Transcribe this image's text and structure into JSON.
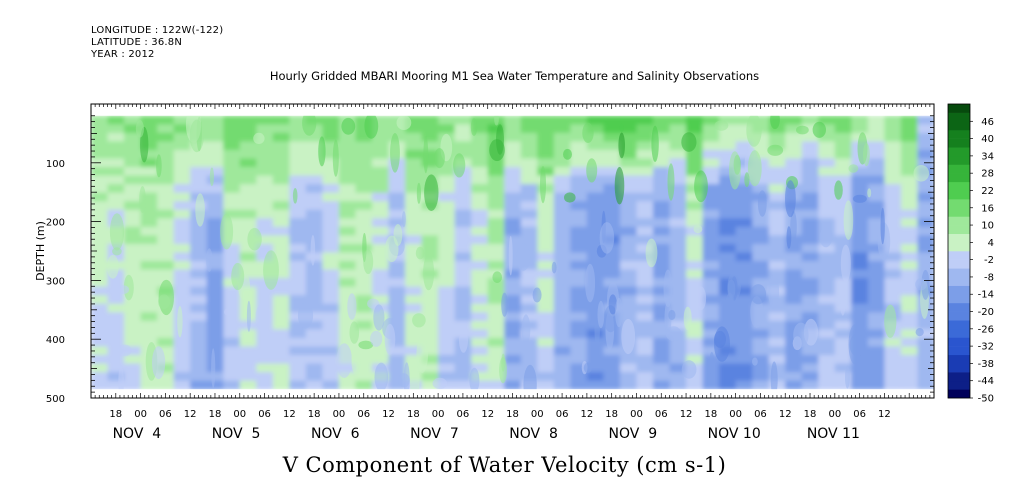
{
  "header": {
    "longitude": "LONGITUDE : 122W(-122)",
    "latitude": "LATITUDE : 36.8N",
    "year": "YEAR : 2012"
  },
  "title": "Hourly Gridded MBARI Mooring M1 Sea Water Temperature and Salinity Observations",
  "chart_data": {
    "type": "heatmap",
    "title": "Hourly Gridded MBARI Mooring M1 Sea Water Temperature and Salinity Observations",
    "xlabel": "V Component of Water Velocity (cm s-1)",
    "ylabel": "DEPTH (m)",
    "ylim": [
      500,
      0
    ],
    "yticks": [
      100,
      200,
      300,
      400,
      500
    ],
    "x_hour_ticks": [
      "18",
      "00",
      "06",
      "12",
      "18",
      "00",
      "06",
      "12",
      "18",
      "00",
      "06",
      "12",
      "18",
      "00",
      "06",
      "12",
      "18",
      "00",
      "06",
      "12",
      "18",
      "00",
      "06",
      "12",
      "18",
      "00",
      "06",
      "12",
      "18",
      "00",
      "06",
      "12"
    ],
    "x_day_labels": [
      "NOV  4",
      "NOV  5",
      "NOV  6",
      "NOV  7",
      "NOV  8",
      "NOV  9",
      "NOV 10",
      "NOV 11"
    ],
    "x_range_hours": [
      -12,
      192
    ],
    "data_depth_range": [
      20,
      485
    ],
    "colorbar": {
      "labels": [
        "46",
        "40",
        "34",
        "28",
        "22",
        "16",
        "10",
        "4",
        "-2",
        "-8",
        "-14",
        "-20",
        "-26",
        "-32",
        "-38",
        "-44",
        "-50"
      ],
      "range": [
        -50,
        52
      ],
      "step": 3,
      "colors_negative": [
        "#00005a",
        "#0d1f87",
        "#1a3cb4",
        "#2a55cf",
        "#3b6ad8",
        "#5a83e0",
        "#7c9ee8",
        "#9fb8f0",
        "#bfcef7"
      ],
      "colors_positive": [
        "#c9f2c4",
        "#9fe89b",
        "#73db70",
        "#4fcd50",
        "#36b43a",
        "#239a2a",
        "#15801e",
        "#0c6515",
        "#064a0d"
      ]
    },
    "columns": [
      {
        "hour": -10,
        "upper": 12,
        "mid": 4,
        "deep": -4
      },
      {
        "hour": -6,
        "upper": 10,
        "mid": 2,
        "deep": -6
      },
      {
        "hour": -2,
        "upper": 14,
        "mid": 5,
        "deep": -2
      },
      {
        "hour": 2,
        "upper": 16,
        "mid": 6,
        "deep": 2
      },
      {
        "hour": 6,
        "upper": 14,
        "mid": 5,
        "deep": 4
      },
      {
        "hour": 10,
        "upper": 12,
        "mid": 0,
        "deep": -4
      },
      {
        "hour": 14,
        "upper": 10,
        "mid": -6,
        "deep": -10
      },
      {
        "hour": 18,
        "upper": 12,
        "mid": -10,
        "deep": -14
      },
      {
        "hour": 22,
        "upper": 18,
        "mid": 4,
        "deep": -6
      },
      {
        "hour": 26,
        "upper": 16,
        "mid": 6,
        "deep": -2
      },
      {
        "hour": 30,
        "upper": 14,
        "mid": 2,
        "deep": -4
      },
      {
        "hour": 34,
        "upper": 12,
        "mid": 4,
        "deep": -2
      },
      {
        "hour": 38,
        "upper": 10,
        "mid": -4,
        "deep": -8
      },
      {
        "hour": 42,
        "upper": 14,
        "mid": -8,
        "deep": -6
      },
      {
        "hour": 46,
        "upper": 16,
        "mid": -2,
        "deep": -4
      },
      {
        "hour": 50,
        "upper": 12,
        "mid": 4,
        "deep": 2
      },
      {
        "hour": 54,
        "upper": 14,
        "mid": 6,
        "deep": 4
      },
      {
        "hour": 58,
        "upper": 10,
        "mid": 2,
        "deep": -2
      },
      {
        "hour": 62,
        "upper": 8,
        "mid": -6,
        "deep": -10
      },
      {
        "hour": 66,
        "upper": 14,
        "mid": 4,
        "deep": 0
      },
      {
        "hour": 70,
        "upper": 16,
        "mid": 6,
        "deep": 4
      },
      {
        "hour": 74,
        "upper": 12,
        "mid": 2,
        "deep": -4
      },
      {
        "hour": 78,
        "upper": 10,
        "mid": -4,
        "deep": -8
      },
      {
        "hour": 82,
        "upper": 14,
        "mid": 2,
        "deep": -2
      },
      {
        "hour": 86,
        "upper": 18,
        "mid": 8,
        "deep": 2
      },
      {
        "hour": 90,
        "upper": 12,
        "mid": -10,
        "deep": -12
      },
      {
        "hour": 94,
        "upper": 14,
        "mid": -6,
        "deep": -8
      },
      {
        "hour": 98,
        "upper": 22,
        "mid": 4,
        "deep": -4
      },
      {
        "hour": 102,
        "upper": 18,
        "mid": -8,
        "deep": -10
      },
      {
        "hour": 106,
        "upper": 16,
        "mid": -12,
        "deep": -14
      },
      {
        "hour": 110,
        "upper": 20,
        "mid": -14,
        "deep": -16
      },
      {
        "hour": 114,
        "upper": 24,
        "mid": -16,
        "deep": -14
      },
      {
        "hour": 118,
        "upper": 26,
        "mid": -10,
        "deep": -8
      },
      {
        "hour": 122,
        "upper": 22,
        "mid": -6,
        "deep": -6
      },
      {
        "hour": 126,
        "upper": 18,
        "mid": -14,
        "deep": -12
      },
      {
        "hour": 130,
        "upper": 14,
        "mid": -8,
        "deep": -10
      },
      {
        "hour": 134,
        "upper": 20,
        "mid": 4,
        "deep": -2
      },
      {
        "hour": 138,
        "upper": 12,
        "mid": -12,
        "deep": -14
      },
      {
        "hour": 142,
        "upper": 10,
        "mid": -18,
        "deep": -16
      },
      {
        "hour": 146,
        "upper": 8,
        "mid": -16,
        "deep": -18
      },
      {
        "hour": 150,
        "upper": 12,
        "mid": -10,
        "deep": -12
      },
      {
        "hour": 154,
        "upper": 16,
        "mid": -6,
        "deep": -8
      },
      {
        "hour": 158,
        "upper": 14,
        "mid": -12,
        "deep": -14
      },
      {
        "hour": 162,
        "upper": 10,
        "mid": -14,
        "deep": -10
      },
      {
        "hour": 166,
        "upper": 12,
        "mid": -8,
        "deep": -6
      },
      {
        "hour": 170,
        "upper": 14,
        "mid": -6,
        "deep": -4
      },
      {
        "hour": 174,
        "upper": 10,
        "mid": -18,
        "deep": -16
      },
      {
        "hour": 178,
        "upper": 6,
        "mid": -14,
        "deep": -12
      },
      {
        "hour": 182,
        "upper": 12,
        "mid": -4,
        "deep": -2
      },
      {
        "hour": 186,
        "upper": 16,
        "mid": 2,
        "deep": -2
      },
      {
        "hour": 190,
        "upper": -8,
        "mid": -12,
        "deep": -8
      }
    ]
  }
}
